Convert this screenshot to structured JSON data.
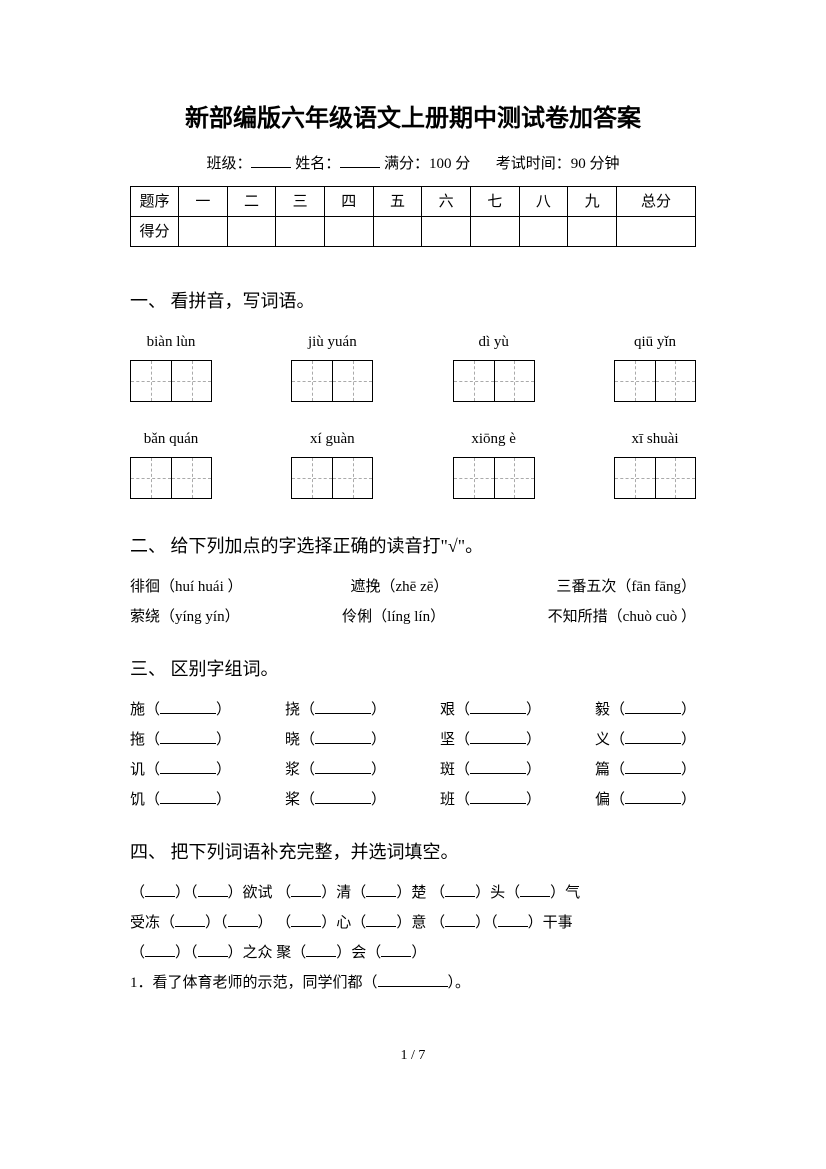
{
  "title": "新部编版六年级语文上册期中测试卷加答案",
  "meta": {
    "class_label": "班级：",
    "name_label": "姓名：",
    "full_label": "满分：",
    "full_value": "100 分",
    "time_label": "考试时间：",
    "time_value": "90 分钟"
  },
  "score_table": {
    "row1": [
      "题序",
      "一",
      "二",
      "三",
      "四",
      "五",
      "六",
      "七",
      "八",
      "九",
      "总分"
    ],
    "row2_label": "得分"
  },
  "q1": {
    "heading": "一、 看拼音，写词语。",
    "row1": [
      "biàn lùn",
      "jiù yuán",
      "dì yù",
      "qiū yǐn"
    ],
    "row2": [
      "bǎn quán",
      "xí guàn",
      "xiōng è",
      "xī shuài"
    ]
  },
  "q2": {
    "heading": "二、 给下列加点的字选择正确的读音打\"√\"。",
    "items_r1": [
      "徘徊（huí  huái ）",
      "遮挽（zhē  zē）",
      "三番五次（fān  fāng）"
    ],
    "items_r2": [
      "萦绕（yíng  yín）",
      "伶俐（líng   lín）",
      "不知所措（chuò cuò ）"
    ]
  },
  "q3": {
    "heading": "三、 区别字组词。",
    "rows": [
      [
        "施",
        "挠",
        "艰",
        "毅"
      ],
      [
        "拖",
        "晓",
        "坚",
        "义"
      ],
      [
        "讥",
        "浆",
        "斑",
        "篇"
      ],
      [
        "饥",
        "桨",
        "班",
        "偏"
      ]
    ]
  },
  "q4": {
    "heading": "四、 把下列词语补充完整，并选词填空。",
    "line1_parts": [
      "（",
      "）（",
      "）欲试   （",
      "）清（",
      "）楚   （",
      "）头（",
      "）气"
    ],
    "line2_parts": [
      "受冻（",
      "）（",
      "）   （",
      "）心（",
      "）意   （",
      "）（",
      "）干事"
    ],
    "line3_parts": [
      "（",
      "）（",
      "）之众   聚（",
      "）会（",
      "）"
    ],
    "sentence1": "1．看了体育老师的示范，同学们都（",
    "sentence1_end": "）。"
  },
  "page": "1 / 7"
}
